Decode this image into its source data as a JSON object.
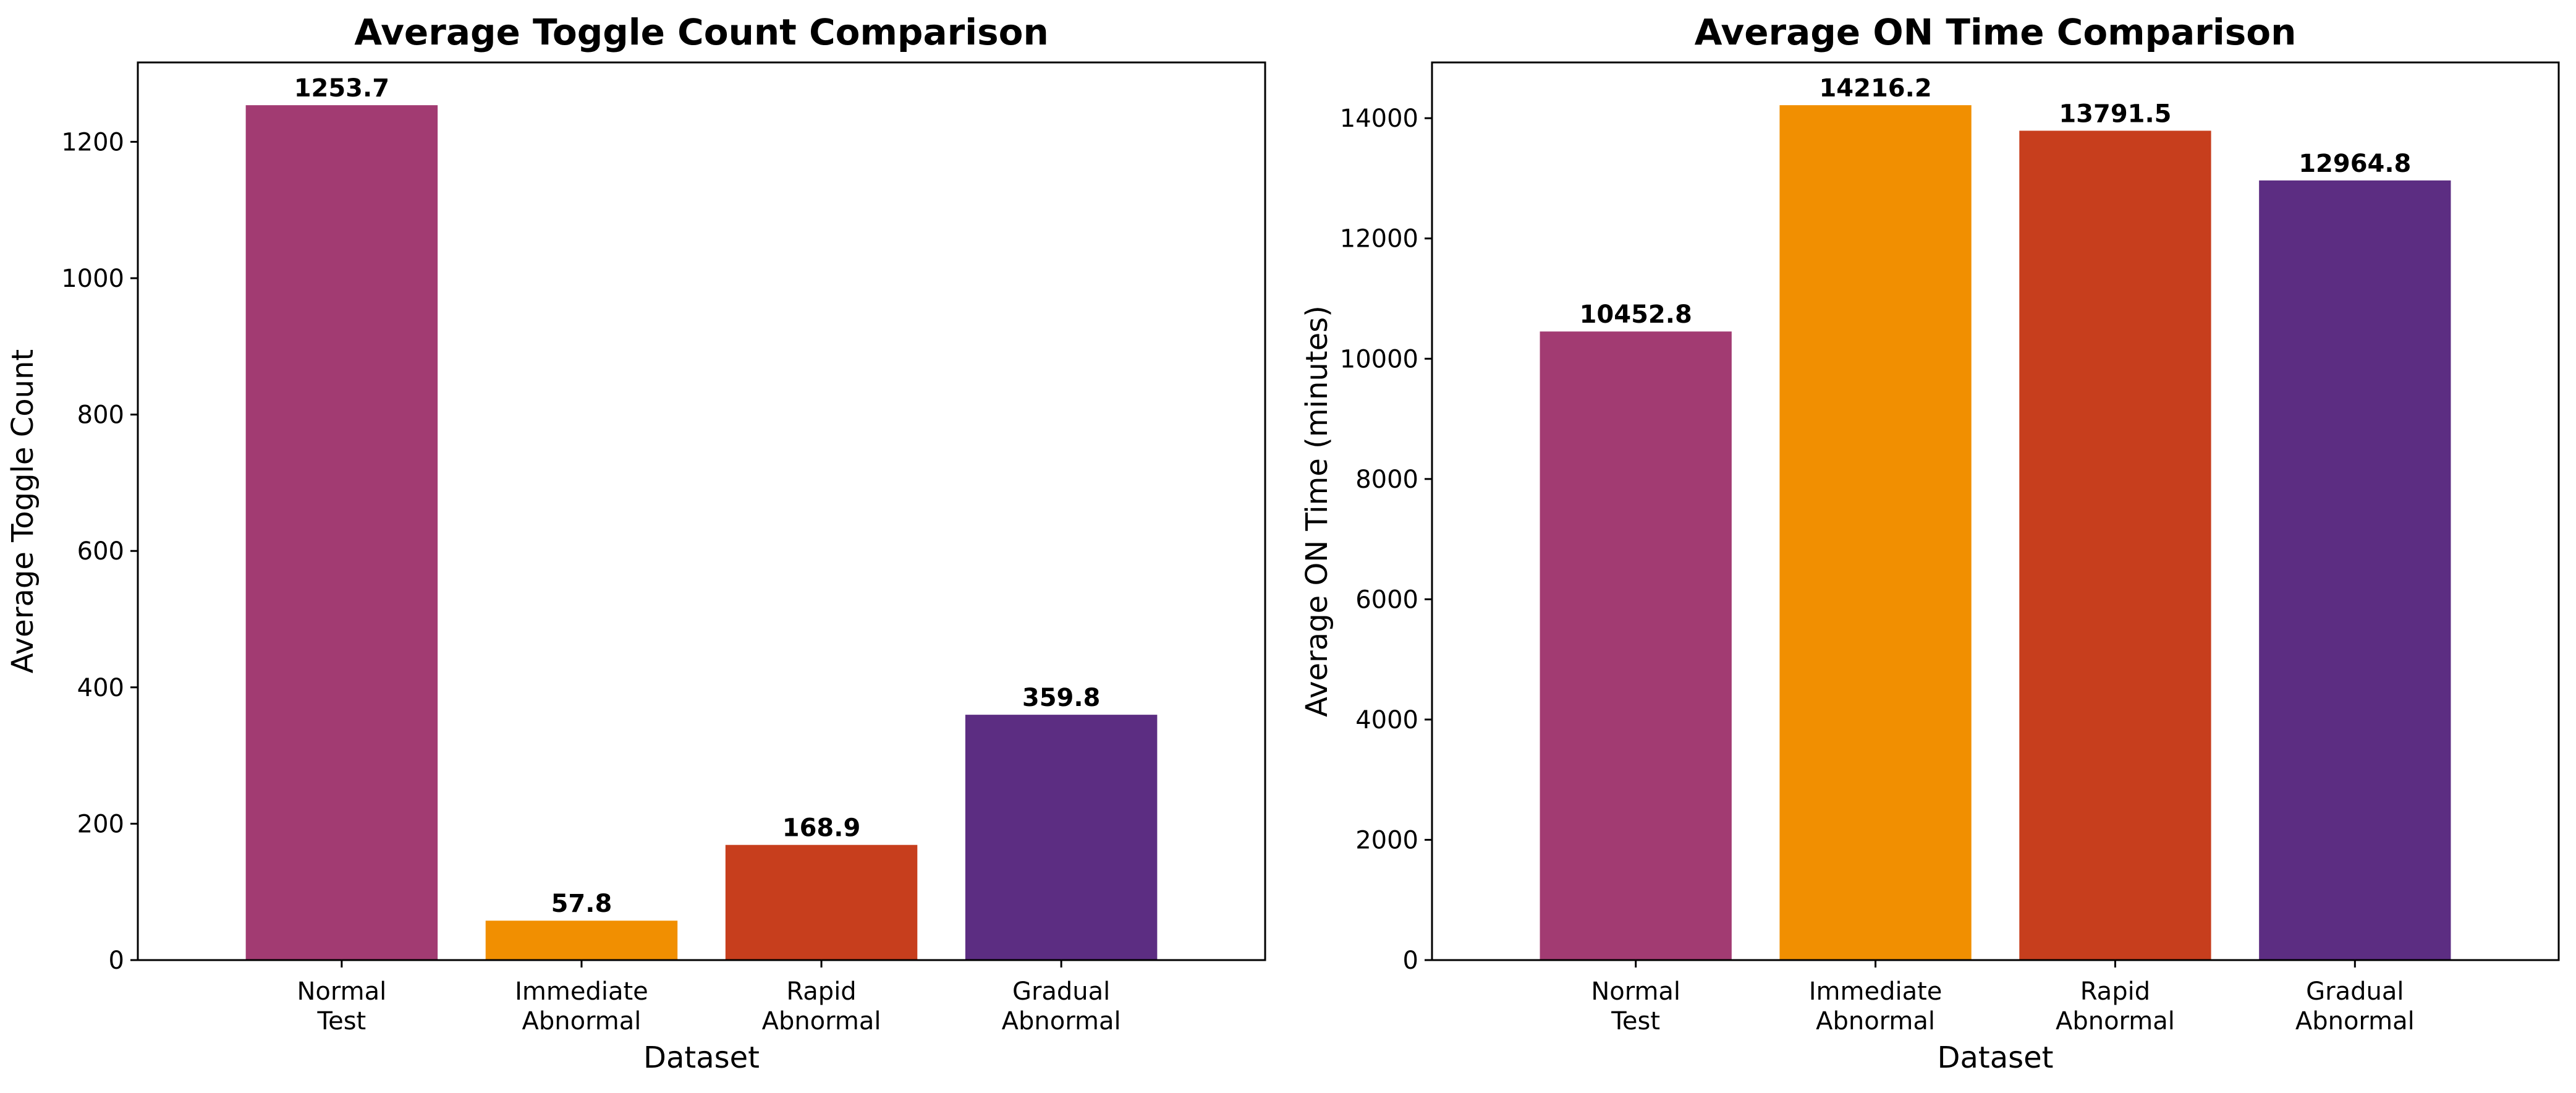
{
  "chart_data": [
    {
      "type": "bar",
      "title": "Average Toggle Count Comparison",
      "xlabel": "Dataset",
      "ylabel": "Average Toggle Count",
      "categories": [
        [
          "Normal",
          "Test"
        ],
        [
          "Immediate",
          "Abnormal"
        ],
        [
          "Rapid",
          "Abnormal"
        ],
        [
          "Gradual",
          "Abnormal"
        ]
      ],
      "values": [
        1253.7,
        57.8,
        168.9,
        359.8
      ],
      "value_labels": [
        "1253.7",
        "57.8",
        "168.9",
        "359.8"
      ],
      "colors": [
        "#a23b72",
        "#f18f01",
        "#c73e1d",
        "#5c2d82"
      ],
      "ylim": [
        0,
        1316.4
      ],
      "yticks": [
        0,
        200,
        400,
        600,
        800,
        1000,
        1200
      ],
      "grid": false,
      "legend": "none"
    },
    {
      "type": "bar",
      "title": "Average ON Time Comparison",
      "xlabel": "Dataset",
      "ylabel": "Average ON Time (minutes)",
      "categories": [
        [
          "Normal",
          "Test"
        ],
        [
          "Immediate",
          "Abnormal"
        ],
        [
          "Rapid",
          "Abnormal"
        ],
        [
          "Gradual",
          "Abnormal"
        ]
      ],
      "values": [
        10452.8,
        14216.2,
        13791.5,
        12964.8
      ],
      "value_labels": [
        "10452.8",
        "14216.2",
        "13791.5",
        "12964.8"
      ],
      "colors": [
        "#a23b72",
        "#f18f01",
        "#c73e1d",
        "#5c2d82"
      ],
      "ylim": [
        0,
        14927
      ],
      "yticks": [
        0,
        2000,
        4000,
        6000,
        8000,
        10000,
        12000,
        14000
      ],
      "grid": false,
      "legend": "none"
    }
  ]
}
